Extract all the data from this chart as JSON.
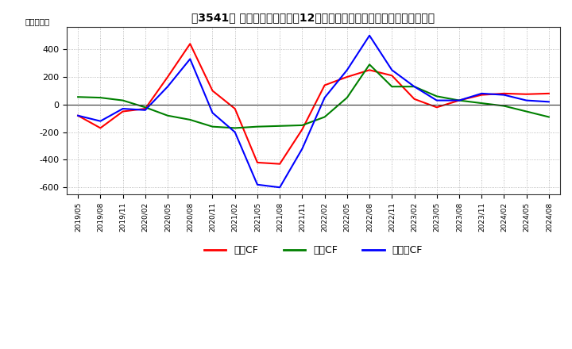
{
  "title": "【3541】 キャッシュフローの12か月移動合計の対前年同期増減額の推移",
  "ylabel": "（百万円）",
  "ylim": [
    -650,
    560
  ],
  "yticks": [
    -600,
    -400,
    -200,
    0,
    200,
    400
  ],
  "background_color": "#ffffff",
  "grid_color": "#aaaaaa",
  "dates": [
    "2019/05",
    "2019/08",
    "2019/11",
    "2020/02",
    "2020/05",
    "2020/08",
    "2020/11",
    "2021/02",
    "2021/05",
    "2021/08",
    "2021/11",
    "2022/02",
    "2022/05",
    "2022/08",
    "2022/11",
    "2023/02",
    "2023/05",
    "2023/08",
    "2023/11",
    "2024/02",
    "2024/05",
    "2024/08"
  ],
  "eigyo_cf": [
    -80,
    -170,
    -50,
    -30,
    200,
    440,
    100,
    -30,
    -420,
    -430,
    -180,
    140,
    200,
    250,
    210,
    40,
    -20,
    30,
    70,
    80,
    75,
    80
  ],
  "toshi_cf": [
    55,
    50,
    30,
    -20,
    -80,
    -110,
    -160,
    -170,
    -160,
    -155,
    -150,
    -90,
    50,
    290,
    130,
    130,
    60,
    30,
    10,
    -10,
    -50,
    -90
  ],
  "free_cf": [
    -80,
    -120,
    -30,
    -40,
    130,
    330,
    -60,
    -200,
    -580,
    -600,
    -320,
    50,
    250,
    500,
    250,
    130,
    30,
    30,
    80,
    70,
    30,
    20
  ],
  "line_colors": {
    "eigyo": "#ff0000",
    "toshi": "#008000",
    "free": "#0000ff"
  },
  "legend_labels": [
    "営業CF",
    "投資CF",
    "フリーCF"
  ],
  "legend_colors": [
    "#ff0000",
    "#008000",
    "#0000ff"
  ]
}
